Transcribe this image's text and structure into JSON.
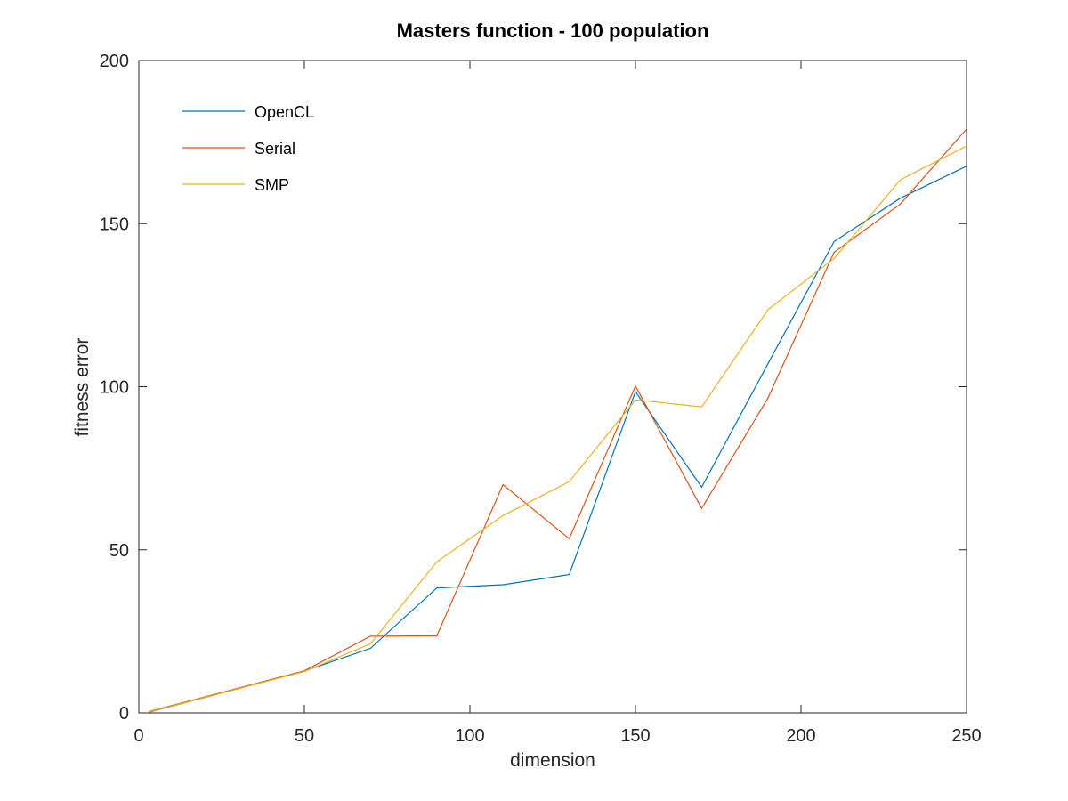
{
  "chart_data": {
    "type": "line",
    "title": "Masters function - 100 population",
    "xlabel": "dimension",
    "ylabel": "fitness error",
    "xlim": [
      0,
      250
    ],
    "ylim": [
      0,
      200
    ],
    "xticks": [
      0,
      50,
      100,
      150,
      200,
      250
    ],
    "yticks": [
      0,
      50,
      100,
      150,
      200
    ],
    "grid": false,
    "legend_position": "top-left",
    "x": [
      3,
      50,
      70,
      90,
      110,
      130,
      150,
      170,
      190,
      210,
      230,
      250
    ],
    "series": [
      {
        "name": "OpenCL",
        "color": "#0072BD",
        "values": [
          0.2,
          12.8,
          19.8,
          38.3,
          39.3,
          42.4,
          98.5,
          69.2,
          107.0,
          144.5,
          157.8,
          167.6
        ]
      },
      {
        "name": "Serial",
        "color": "#D95319",
        "values": [
          0.4,
          12.9,
          23.5,
          23.6,
          70.0,
          53.4,
          100.2,
          62.7,
          96.5,
          141.2,
          156.0,
          179.0
        ]
      },
      {
        "name": "SMP",
        "color": "#EDB120",
        "values": [
          0.3,
          12.7,
          21.2,
          46.3,
          60.5,
          70.9,
          96.0,
          93.8,
          123.6,
          139.3,
          163.4,
          173.8
        ]
      }
    ]
  }
}
